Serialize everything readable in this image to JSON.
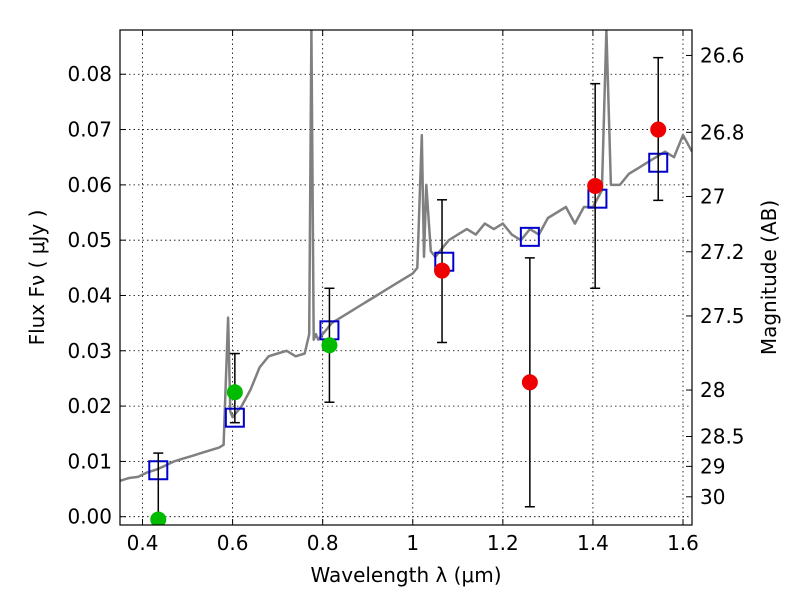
{
  "chart_data": {
    "type": "scatter",
    "title": "",
    "xlabel": "Wavelength  λ (μm)",
    "ylabel": "Flux  Fν  ( μJy )",
    "y2label": "Magnitude (AB)",
    "xlim": [
      0.35,
      1.62
    ],
    "ylim": [
      -0.0015,
      0.088
    ],
    "grid": true,
    "x_ticks": [
      0.4,
      0.6,
      0.8,
      1.0,
      1.2,
      1.4,
      1.6
    ],
    "x_tick_labels": [
      "0.4",
      "0.6",
      "0.8",
      "1",
      "1.2",
      "1.4",
      "1.6"
    ],
    "y_ticks": [
      0.0,
      0.01,
      0.02,
      0.03,
      0.04,
      0.05,
      0.06,
      0.07,
      0.08
    ],
    "y_tick_labels": [
      "0.00",
      "0.01",
      "0.02",
      "0.03",
      "0.04",
      "0.05",
      "0.06",
      "0.07",
      "0.08"
    ],
    "y2_ticks": [
      {
        "label": "26.6",
        "flux": 0.0834
      },
      {
        "label": "26.8",
        "flux": 0.0695
      },
      {
        "label": "27",
        "flux": 0.0579
      },
      {
        "label": "27.2",
        "flux": 0.0479
      },
      {
        "label": "27.5",
        "flux": 0.0363
      },
      {
        "label": "28",
        "flux": 0.0229
      },
      {
        "label": "28.5",
        "flux": 0.0145
      },
      {
        "label": "29",
        "flux": 0.0091
      },
      {
        "label": "30",
        "flux": 0.0036
      }
    ],
    "series": [
      {
        "kind": "line",
        "color": "#808080",
        "x": [
          0.35,
          0.37,
          0.39,
          0.41,
          0.43,
          0.45,
          0.47,
          0.49,
          0.51,
          0.53,
          0.55,
          0.57,
          0.58,
          0.59,
          0.595,
          0.6,
          0.62,
          0.64,
          0.66,
          0.68,
          0.7,
          0.72,
          0.74,
          0.76,
          0.77,
          0.775,
          0.78,
          0.785,
          0.79,
          0.8,
          0.82,
          0.84,
          0.86,
          0.88,
          0.9,
          0.92,
          0.94,
          0.96,
          0.98,
          1.0,
          1.01,
          1.02,
          1.025,
          1.03,
          1.04,
          1.05,
          1.06,
          1.08,
          1.1,
          1.12,
          1.14,
          1.16,
          1.18,
          1.2,
          1.22,
          1.24,
          1.26,
          1.28,
          1.3,
          1.32,
          1.34,
          1.36,
          1.38,
          1.4,
          1.42,
          1.43,
          1.44,
          1.46,
          1.48,
          1.5,
          1.52,
          1.54,
          1.56,
          1.58,
          1.6,
          1.62
        ],
        "y": [
          0.0065,
          0.007,
          0.0072,
          0.008,
          0.0085,
          0.0092,
          0.01,
          0.0105,
          0.011,
          0.0115,
          0.012,
          0.0125,
          0.013,
          0.036,
          0.019,
          0.018,
          0.02,
          0.023,
          0.027,
          0.029,
          0.0295,
          0.03,
          0.029,
          0.0295,
          0.033,
          0.088,
          0.032,
          0.033,
          0.032,
          0.033,
          0.035,
          0.036,
          0.037,
          0.038,
          0.039,
          0.04,
          0.041,
          0.042,
          0.043,
          0.044,
          0.045,
          0.069,
          0.047,
          0.06,
          0.048,
          0.047,
          0.048,
          0.05,
          0.051,
          0.052,
          0.051,
          0.053,
          0.052,
          0.053,
          0.051,
          0.05,
          0.052,
          0.051,
          0.054,
          0.055,
          0.056,
          0.053,
          0.056,
          0.056,
          0.059,
          0.088,
          0.06,
          0.06,
          0.062,
          0.063,
          0.064,
          0.065,
          0.066,
          0.065,
          0.069,
          0.066
        ]
      },
      {
        "kind": "open-square",
        "color": "#0000cc",
        "x": [
          0.435,
          0.605,
          0.815,
          1.07,
          1.26,
          1.41,
          1.545
        ],
        "y": [
          0.0084,
          0.0179,
          0.0337,
          0.0461,
          0.0506,
          0.0575,
          0.064
        ]
      },
      {
        "kind": "filled-circle",
        "color": "#00bb00",
        "x": [
          0.435,
          0.605,
          0.815
        ],
        "y": [
          -0.0005,
          0.0225,
          0.031
        ],
        "yerr_low": [
          0.0,
          0.0055,
          0.0103
        ],
        "yerr_high": [
          0.012,
          0.007,
          0.0103
        ]
      },
      {
        "kind": "filled-circle",
        "color": "#ee0000",
        "x": [
          1.065,
          1.26,
          1.405,
          1.545
        ],
        "y": [
          0.0445,
          0.0243,
          0.0598,
          0.07
        ],
        "yerr_low": [
          0.013,
          0.0225,
          0.0185,
          0.0128
        ],
        "yerr_high": [
          0.0128,
          0.0225,
          0.0185,
          0.013
        ]
      }
    ]
  }
}
